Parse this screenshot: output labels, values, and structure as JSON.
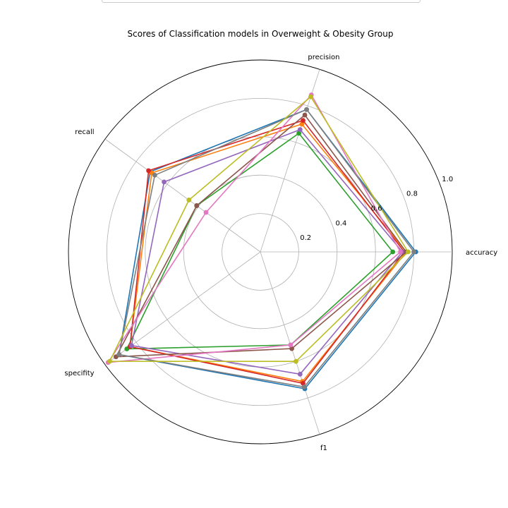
{
  "chart_data": {
    "type": "radar",
    "title": "Scores of Classification models in Overweight & Obesity Group",
    "axes": [
      "accuracy",
      "precision",
      "recall",
      "specifity",
      "f1"
    ],
    "rlim": [
      0,
      1.0
    ],
    "radial_ticks": [
      {
        "value": 0.2,
        "label": "0.2"
      },
      {
        "value": 0.4,
        "label": "0.4"
      },
      {
        "value": 0.6,
        "label": "0.6"
      },
      {
        "value": 0.8,
        "label": "0.8"
      },
      {
        "value": 1.0,
        "label": "1.0"
      }
    ],
    "grid": true,
    "legend": "top",
    "series": [
      {
        "color": "#1f77b4",
        "values": [
          0.81,
          0.78,
          0.71,
          0.91,
          0.75
        ]
      },
      {
        "color": "#ff7f0e",
        "values": [
          0.76,
          0.7,
          0.7,
          0.84,
          0.71
        ]
      },
      {
        "color": "#2ca02c",
        "values": [
          0.69,
          0.65,
          0.41,
          0.86,
          0.51
        ]
      },
      {
        "color": "#d62728",
        "values": [
          0.75,
          0.72,
          0.72,
          0.84,
          0.72
        ]
      },
      {
        "color": "#9467bd",
        "values": [
          0.74,
          0.67,
          0.62,
          0.83,
          0.67
        ]
      },
      {
        "color": "#8c564b",
        "values": [
          0.76,
          0.75,
          0.41,
          0.93,
          0.53
        ]
      },
      {
        "color": "#e377c2",
        "values": [
          0.73,
          0.86,
          0.35,
          0.98,
          0.51
        ]
      },
      {
        "color": "#7f7f7f",
        "values": [
          0.8,
          0.78,
          0.68,
          0.91,
          0.74
        ]
      },
      {
        "color": "#bcbd22",
        "values": [
          0.77,
          0.85,
          0.46,
          0.97,
          0.6
        ]
      }
    ]
  }
}
